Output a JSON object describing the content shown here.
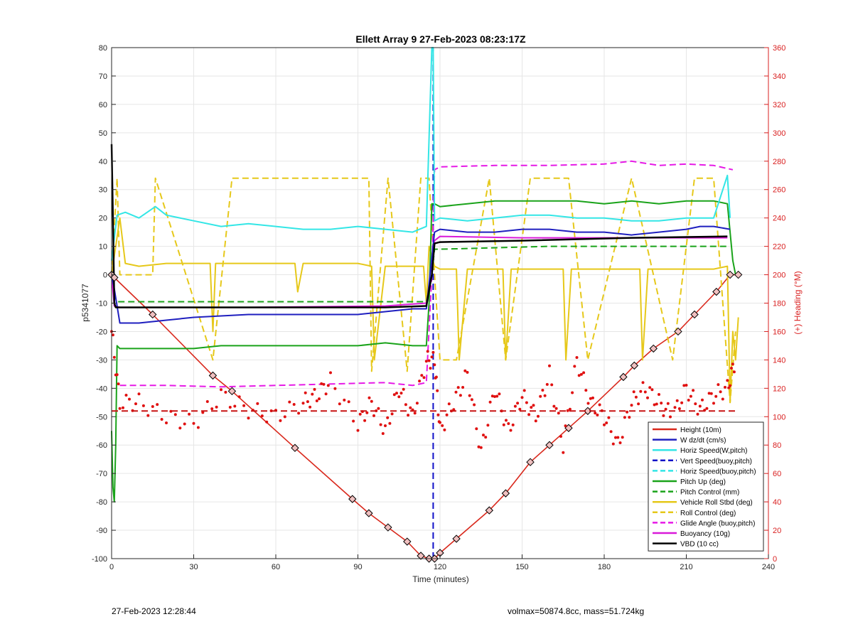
{
  "chart_data": {
    "type": "line",
    "title": "Ellett Array 9 27-Feb-2023 08:23:17Z",
    "xlabel": "Time (minutes)",
    "ylabel_left": "p5341077",
    "ylabel_right": "(+) Heading (°M)",
    "xlim": [
      0,
      240
    ],
    "ylim_left": [
      -100,
      80
    ],
    "ylim_right": [
      0,
      360
    ],
    "xticks": [
      "0",
      "30",
      "60",
      "90",
      "120",
      "150",
      "180",
      "210",
      "240"
    ],
    "yticks_left": [
      "-100",
      "-90",
      "-80",
      "-70",
      "-60",
      "-50",
      "-40",
      "-30",
      "-20",
      "-10",
      "0",
      "10",
      "20",
      "30",
      "40",
      "50",
      "60",
      "70",
      "80"
    ],
    "yticks_right": [
      "0",
      "20",
      "40",
      "60",
      "80",
      "100",
      "120",
      "140",
      "160",
      "180",
      "200",
      "220",
      "240",
      "260",
      "280",
      "300",
      "320",
      "340",
      "360"
    ],
    "grid": true,
    "legend_position": "bottom-right",
    "colors": {
      "height": "#d9281c",
      "w": "#1f1fbf",
      "horiz_w": "#33e6e6",
      "vert_buoy": "#1010c8",
      "horiz_buoy": "#33e6e6",
      "pitch": "#1aa31a",
      "pitch_ctrl": "#1aa31a",
      "roll": "#e6c81a",
      "roll_ctrl": "#e6c81a",
      "glide": "#e619e6",
      "buoyancy": "#d91ad9",
      "vbd": "#000000",
      "heading": "#e01010",
      "heading_mean": "#c81414",
      "right_axis": "#d92020"
    },
    "series": [
      {
        "name": "Height (10m)",
        "style": "solid",
        "color_key": "height",
        "x": [
          0,
          1,
          15,
          37,
          44,
          67,
          88,
          94,
          101,
          108,
          113,
          116,
          118,
          120,
          126,
          138,
          144,
          153,
          160,
          167,
          174,
          187,
          191,
          198,
          207,
          213,
          221,
          226,
          229
        ],
        "y": [
          0,
          -1,
          -14,
          -35.5,
          -41,
          -61,
          -79,
          -84,
          -89,
          -94,
          -99,
          -100,
          -100,
          -98,
          -93,
          -83,
          -77,
          -66,
          -60,
          -54,
          -48,
          -36,
          -32,
          -26,
          -20,
          -14,
          -6,
          0,
          0
        ]
      },
      {
        "name": "W  dz/dt (cm/s)",
        "style": "solid",
        "color_key": "w",
        "x": [
          0,
          1,
          3,
          10,
          20,
          30,
          50,
          70,
          90,
          100,
          110,
          115,
          118,
          120,
          130,
          140,
          150,
          160,
          170,
          180,
          190,
          200,
          210,
          215,
          220,
          226
        ],
        "y": [
          0,
          -5,
          -17,
          -17,
          -16,
          -15,
          -14,
          -14,
          -14,
          -13,
          -12,
          -12,
          15,
          16,
          15,
          15,
          16,
          16,
          15,
          15,
          14,
          15,
          16,
          17,
          17,
          16
        ]
      },
      {
        "name": "Horiz Speed(W,pitch)",
        "style": "solid",
        "color_key": "horiz_w",
        "x": [
          0,
          2,
          5,
          10,
          16,
          20,
          30,
          40,
          50,
          60,
          70,
          80,
          90,
          100,
          110,
          115,
          117,
          117.5,
          118,
          120,
          130,
          140,
          150,
          160,
          170,
          180,
          190,
          200,
          210,
          220,
          225,
          226
        ],
        "y": [
          5,
          21,
          22,
          20,
          24,
          21,
          19,
          17,
          18,
          17,
          16,
          16,
          17,
          16,
          15,
          17,
          80,
          80,
          19,
          20,
          19,
          20,
          21,
          21,
          20,
          20,
          19,
          19,
          20,
          20,
          35,
          20
        ]
      },
      {
        "name": "Vert Speed(buoy,pitch)",
        "style": "dashed",
        "color_key": "vert_buoy",
        "x": [
          117.5,
          117.5
        ],
        "y": [
          -100,
          80
        ]
      },
      {
        "name": "Horiz Speed(buoy,pitch)",
        "style": "dashed",
        "color_key": "horiz_buoy",
        "x": [],
        "y": []
      },
      {
        "name": "Pitch Up (deg)",
        "style": "solid",
        "color_key": "pitch",
        "x": [
          0,
          0.5,
          1,
          1.5,
          2,
          3,
          10,
          20,
          30,
          40,
          50,
          60,
          70,
          80,
          90,
          100,
          110,
          115,
          116,
          117,
          118,
          120,
          130,
          140,
          150,
          160,
          170,
          180,
          190,
          200,
          210,
          220,
          225,
          227,
          228
        ],
        "y": [
          -55,
          -75,
          -80,
          -60,
          -25,
          -26,
          -26,
          -26,
          -26,
          -25,
          -25,
          -25,
          -25,
          -25,
          -25,
          -24,
          -25,
          -25,
          -10,
          25,
          25,
          24,
          25,
          26,
          26,
          26,
          26,
          25,
          26,
          25,
          26,
          26,
          25,
          5,
          0
        ]
      },
      {
        "name": "Pitch Control (mm)",
        "style": "dashed",
        "color_key": "pitch_ctrl",
        "x": [
          0,
          1,
          2,
          50,
          100,
          115,
          117,
          118,
          120,
          160,
          200,
          225
        ],
        "y": [
          0,
          -9,
          -9.5,
          -9.5,
          -9.5,
          -9.5,
          0,
          9,
          9,
          10,
          10,
          10
        ]
      },
      {
        "name": "Vehicle Roll Stbd (deg)",
        "style": "solid",
        "color_key": "roll",
        "x": [
          0,
          3,
          5,
          10,
          20,
          30,
          36,
          37,
          38,
          40,
          60,
          67,
          68,
          70,
          90,
          95,
          96,
          100,
          110,
          114,
          115,
          116,
          118,
          120,
          122,
          126,
          127,
          130,
          140,
          143,
          144,
          146,
          160,
          165,
          166,
          168,
          190,
          193,
          194,
          196,
          210,
          220,
          225,
          226,
          227,
          228,
          229
        ],
        "y": [
          0,
          20,
          4,
          3,
          4,
          4,
          4,
          -20,
          4,
          4,
          4,
          4,
          -6,
          4,
          4,
          3,
          -30,
          3,
          3,
          3,
          -10,
          10,
          3,
          2,
          2,
          2,
          -30,
          2,
          2,
          2,
          -30,
          2,
          2,
          2,
          -30,
          2,
          2,
          2,
          -30,
          2,
          2,
          2,
          3,
          -45,
          -20,
          -30,
          -15
        ]
      },
      {
        "name": "Roll Control (deg)",
        "style": "dashed",
        "color_key": "roll_ctrl",
        "x": [
          0,
          2,
          3,
          6,
          15,
          16,
          37,
          44,
          67,
          88,
          94,
          95,
          101,
          108,
          113,
          116,
          118,
          120,
          126,
          138,
          144,
          153,
          160,
          167,
          174,
          190,
          205,
          213,
          220,
          226,
          228
        ],
        "y": [
          0,
          34,
          0,
          0,
          0,
          34,
          -30,
          34,
          34,
          34,
          34,
          -34,
          34,
          -34,
          34,
          34,
          0,
          -30,
          -30,
          34,
          -30,
          34,
          34,
          34,
          -30,
          34,
          -30,
          34,
          34,
          -45,
          -20
        ]
      },
      {
        "name": "Glide Angle (buoy,pitch)",
        "style": "dashed",
        "color_key": "glide",
        "x": [
          3,
          20,
          40,
          60,
          80,
          100,
          110,
          115,
          117,
          118,
          120,
          140,
          160,
          180,
          190,
          200,
          210,
          220,
          227
        ],
        "y": [
          -39,
          -39,
          -39.5,
          -39,
          -38.5,
          -38,
          -39,
          -38,
          0,
          37,
          38,
          38.5,
          38.5,
          39,
          40,
          38.5,
          39,
          38.5,
          37
        ]
      },
      {
        "name": "Buoyancy (10g)",
        "style": "solid",
        "color_key": "buoyancy",
        "x": [
          0,
          1,
          3,
          50,
          100,
          115,
          117,
          118,
          120,
          150,
          190,
          225
        ],
        "y": [
          0,
          -11,
          -11.5,
          -11.5,
          -11,
          -10,
          0,
          12,
          13.5,
          13,
          13,
          13
        ]
      },
      {
        "name": "VBD (10 cc)",
        "style": "solid",
        "color_key": "vbd",
        "x": [
          0,
          0.5,
          1,
          1.5,
          2,
          3,
          50,
          100,
          115,
          117,
          118,
          120,
          150,
          190,
          225
        ],
        "y": [
          46,
          20,
          -10,
          -11.5,
          -11.5,
          -11.5,
          -11.5,
          -11.5,
          -11,
          0,
          11,
          11.5,
          12,
          13,
          13.5
        ]
      }
    ],
    "heading_series": {
      "axis": "right",
      "color_key": "heading",
      "x": [
        0,
        3,
        10,
        20,
        30,
        40,
        50,
        60,
        70,
        75,
        80,
        90,
        95,
        100,
        105,
        110,
        115,
        118,
        120,
        125,
        130,
        135,
        140,
        145,
        150,
        155,
        160,
        165,
        170,
        175,
        180,
        185,
        190,
        195,
        200,
        205,
        210,
        215,
        220,
        225,
        228
      ],
      "y": [
        160,
        110,
        110,
        100,
        95,
        115,
        105,
        100,
        110,
        115,
        125,
        95,
        110,
        90,
        120,
        100,
        140,
        140,
        90,
        110,
        130,
        75,
        120,
        90,
        115,
        100,
        130,
        80,
        140,
        110,
        100,
        80,
        110,
        120,
        110,
        100,
        120,
        105,
        115,
        120,
        140
      ],
      "mean_y": 104
    },
    "annotations": [
      {
        "text": "27-Feb-2023 12:28:44",
        "position": "bottom-left"
      },
      {
        "text": "volmax=50874.8cc, mass=51.724kg",
        "position": "bottom-center"
      }
    ]
  }
}
